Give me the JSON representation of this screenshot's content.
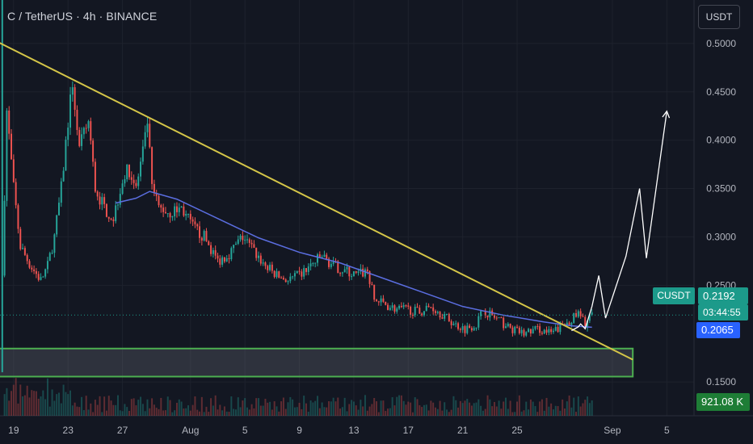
{
  "header": {
    "title": "C / TetherUS · 4h · BINANCE",
    "currency": "USDT"
  },
  "price_scale": {
    "current_price": "0.2192",
    "countdown": "03:44:55",
    "symbol": "CUSDT",
    "ma_value": "0.2065",
    "volume": "921.08 K"
  },
  "colors": {
    "up": "#26a69a",
    "down": "#ef5350",
    "ma": "#5b6ee1",
    "trendline": "#d4c548",
    "support_zone": "#4caf50",
    "projection": "#ffffff"
  },
  "chart_data": {
    "type": "candlestick",
    "title": "",
    "timeframe": "4h",
    "x_ticks": [
      "19",
      "23",
      "27",
      "Aug",
      "5",
      "9",
      "13",
      "17",
      "21",
      "25",
      "Sep",
      "5"
    ],
    "x_ticks_dates": [
      "07-19",
      "07-23",
      "07-27",
      "08-01",
      "08-05",
      "08-09",
      "08-13",
      "08-17",
      "08-21",
      "08-25",
      "09-01",
      "09-05"
    ],
    "y_ticks": [
      "0.5000",
      "0.4500",
      "0.4000",
      "0.3500",
      "0.3000",
      "0.2500",
      "0.1500"
    ],
    "y_tick_values": [
      0.5,
      0.45,
      0.4,
      0.35,
      0.3,
      0.25,
      0.15
    ],
    "y_range": [
      0.115,
      0.545
    ],
    "x_range": [
      "07-18",
      "09-07"
    ],
    "close_path": [
      [
        "07-18 04:00",
        0.26
      ],
      [
        "07-18 12:00",
        0.43
      ],
      [
        "07-19 00:00",
        0.35
      ],
      [
        "07-19 12:00",
        0.29
      ],
      [
        "07-20 06:00",
        0.27
      ],
      [
        "07-21 00:00",
        0.255
      ],
      [
        "07-21 12:00",
        0.27
      ],
      [
        "07-22 00:00",
        0.3
      ],
      [
        "07-22 12:00",
        0.35
      ],
      [
        "07-23 00:00",
        0.42
      ],
      [
        "07-23 08:00",
        0.46
      ],
      [
        "07-23 20:00",
        0.39
      ],
      [
        "07-24 12:00",
        0.42
      ],
      [
        "07-25 00:00",
        0.35
      ],
      [
        "07-25 16:00",
        0.33
      ],
      [
        "07-26 08:00",
        0.32
      ],
      [
        "07-27 00:00",
        0.36
      ],
      [
        "07-27 12:00",
        0.37
      ],
      [
        "07-28 00:00",
        0.35
      ],
      [
        "07-28 16:00",
        0.4
      ],
      [
        "07-28 20:00",
        0.42
      ],
      [
        "07-29 04:00",
        0.35
      ],
      [
        "07-29 16:00",
        0.33
      ],
      [
        "07-30 12:00",
        0.325
      ],
      [
        "07-31 08:00",
        0.33
      ],
      [
        "08-01 04:00",
        0.31
      ],
      [
        "08-02 00:00",
        0.3
      ],
      [
        "08-03 00:00",
        0.275
      ],
      [
        "08-04 00:00",
        0.285
      ],
      [
        "08-04 20:00",
        0.3
      ],
      [
        "08-05 16:00",
        0.285
      ],
      [
        "08-06 12:00",
        0.27
      ],
      [
        "08-07 08:00",
        0.26
      ],
      [
        "08-08 04:00",
        0.255
      ],
      [
        "08-09 00:00",
        0.26
      ],
      [
        "08-09 20:00",
        0.27
      ],
      [
        "08-10 16:00",
        0.28
      ],
      [
        "08-11 12:00",
        0.27
      ],
      [
        "08-12 08:00",
        0.265
      ],
      [
        "08-13 04:00",
        0.26
      ],
      [
        "08-14 00:00",
        0.265
      ],
      [
        "08-14 12:00",
        0.235
      ],
      [
        "08-15 08:00",
        0.23
      ],
      [
        "08-16 04:00",
        0.225
      ],
      [
        "08-17 00:00",
        0.225
      ],
      [
        "08-17 20:00",
        0.222
      ],
      [
        "08-18 16:00",
        0.228
      ],
      [
        "08-19 12:00",
        0.22
      ],
      [
        "08-20 08:00",
        0.21
      ],
      [
        "08-21 04:00",
        0.205
      ],
      [
        "08-22 00:00",
        0.21
      ],
      [
        "08-22 12:00",
        0.225
      ],
      [
        "08-23 12:00",
        0.215
      ],
      [
        "08-24 12:00",
        0.205
      ],
      [
        "08-25 12:00",
        0.2
      ],
      [
        "08-26 12:00",
        0.205
      ],
      [
        "08-27 12:00",
        0.2
      ],
      [
        "08-28 12:00",
        0.21
      ],
      [
        "08-29 12:00",
        0.22
      ],
      [
        "08-30 00:00",
        0.21
      ],
      [
        "08-30 12:00",
        0.22
      ]
    ],
    "moving_average": [
      [
        "07-26 12:00",
        0.335
      ],
      [
        "07-28 00:00",
        0.34
      ],
      [
        "07-29 00:00",
        0.347
      ],
      [
        "07-31 00:00",
        0.339
      ],
      [
        "08-03 00:00",
        0.319
      ],
      [
        "08-06 00:00",
        0.299
      ],
      [
        "08-09 00:00",
        0.284
      ],
      [
        "08-12 00:00",
        0.273
      ],
      [
        "08-15 00:00",
        0.258
      ],
      [
        "08-18 00:00",
        0.243
      ],
      [
        "08-21 00:00",
        0.228
      ],
      [
        "08-24 00:00",
        0.219
      ],
      [
        "08-27 00:00",
        0.212
      ],
      [
        "08-29 00:00",
        0.208
      ],
      [
        "08-30 12:00",
        0.2065
      ]
    ],
    "trendline": [
      [
        "07-16 12:00",
        0.511
      ],
      [
        "09-02 12:00",
        0.173
      ]
    ],
    "support_zone": {
      "from": "07-17 12:00",
      "to": "09-02 12:00",
      "top": 0.1845,
      "bottom": 0.1555
    },
    "projection_path": [
      [
        "08-29 00:00",
        0.203
      ],
      [
        "08-29 12:00",
        0.207
      ],
      [
        "08-29 16:00",
        0.21
      ],
      [
        "08-30 00:00",
        0.205
      ],
      [
        "08-30 12:00",
        0.228
      ],
      [
        "08-31 00:00",
        0.26
      ],
      [
        "08-31 12:00",
        0.216
      ],
      [
        "09-02 00:00",
        0.28
      ],
      [
        "09-03 00:00",
        0.35
      ],
      [
        "09-03 12:00",
        0.278
      ],
      [
        "09-05 00:00",
        0.43
      ]
    ],
    "current_price": 0.2192,
    "ma_last": 0.2065
  }
}
